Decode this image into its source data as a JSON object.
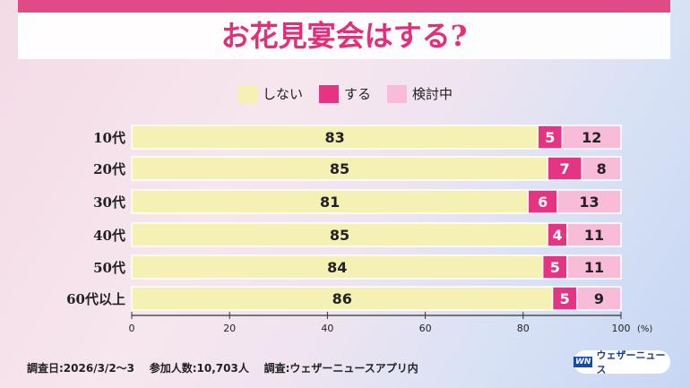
{
  "title": "お花見宴会はする?",
  "footer": {
    "survey_date": "調査日:2026/3/2〜3",
    "participants": "参加人数:10,703人",
    "source": "調査:ウェザーニュースアプリ内"
  },
  "logo": {
    "mark": "WN",
    "text": "ウェザーニュース"
  },
  "colors": {
    "no": "#f5f1b4",
    "yes": "#e63484",
    "considering": "#f8bcd8"
  },
  "chart_data": {
    "type": "bar",
    "stacked": true,
    "orientation": "horizontal",
    "title": "お花見宴会はする?",
    "categories": [
      "10代",
      "20代",
      "30代",
      "40代",
      "50代",
      "60代以上"
    ],
    "series": [
      {
        "name": "しない",
        "values": [
          83,
          85,
          81,
          85,
          84,
          86
        ]
      },
      {
        "name": "する",
        "values": [
          5,
          7,
          6,
          4,
          5,
          5
        ]
      },
      {
        "name": "検討中",
        "values": [
          12,
          8,
          13,
          11,
          11,
          9
        ]
      }
    ],
    "xlim": [
      0,
      100
    ],
    "xticks": [
      "0",
      "20",
      "40",
      "60",
      "80",
      "100"
    ],
    "xunit": "(%)",
    "legend": "top"
  }
}
